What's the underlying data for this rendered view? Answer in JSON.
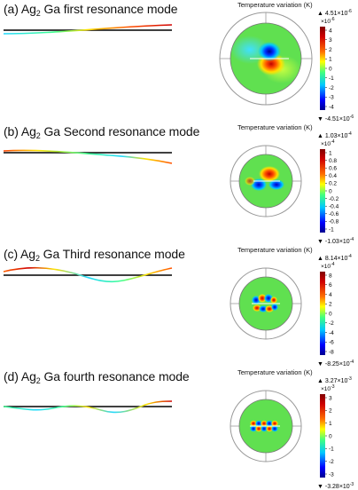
{
  "panels": [
    {
      "title_pre": "(a) Ag",
      "title_sub": "2",
      "title_post": "Ga first resonance mode",
      "colorbar_title": "Temperature variation (K)",
      "max_label": "4.51×10",
      "max_exp": "-6",
      "min_label": "-4.51×10",
      "min_exp": "-6",
      "scale_label": "×10",
      "scale_exp": "-6",
      "ticks": [
        "4",
        "3",
        "2",
        "1",
        "0",
        "-1",
        "-2",
        "-3",
        "-4"
      ]
    },
    {
      "title_pre": "(b) Ag",
      "title_sub": "2",
      "title_post": "Ga Second resonance mode",
      "colorbar_title": "Temperature variation (K)",
      "max_label": "1.03×10",
      "max_exp": "-4",
      "min_label": "-1.03×10",
      "min_exp": "-4",
      "scale_label": "×10",
      "scale_exp": "-4",
      "ticks": [
        "1",
        "0.8",
        "0.6",
        "0.4",
        "0.2",
        "0",
        "-0.2",
        "-0.4",
        "-0.6",
        "-0.8",
        "-1"
      ]
    },
    {
      "title_pre": "(c) Ag",
      "title_sub": "2",
      "title_post": "Ga Third resonance mode",
      "colorbar_title": "Temperature variation (K)",
      "max_label": "8.14×10",
      "max_exp": "-4",
      "min_label": "-8.25×10",
      "min_exp": "-4",
      "scale_label": "×10",
      "scale_exp": "-4",
      "ticks": [
        "8",
        "6",
        "4",
        "2",
        "0",
        "-2",
        "-4",
        "-6",
        "-8"
      ]
    },
    {
      "title_pre": "(d) Ag",
      "title_sub": "2",
      "title_post": "Ga fourth resonance mode",
      "colorbar_title": "Temperature variation (K)",
      "max_label": "3.27×10",
      "max_exp": "-3",
      "min_label": "-3.28×10",
      "min_exp": "-3",
      "scale_label": "×10",
      "scale_exp": "-3",
      "ticks": [
        "3",
        "2",
        "1",
        "0",
        "-1",
        "-2",
        "-3"
      ]
    }
  ],
  "colors": {
    "colormap": [
      "#00008f",
      "#0000ff",
      "#00c8ff",
      "#40ff80",
      "#ffff00",
      "#ff6a00",
      "#c00000",
      "#800000"
    ],
    "disk_bg": "#55d860",
    "beam_ref": "#000000"
  }
}
